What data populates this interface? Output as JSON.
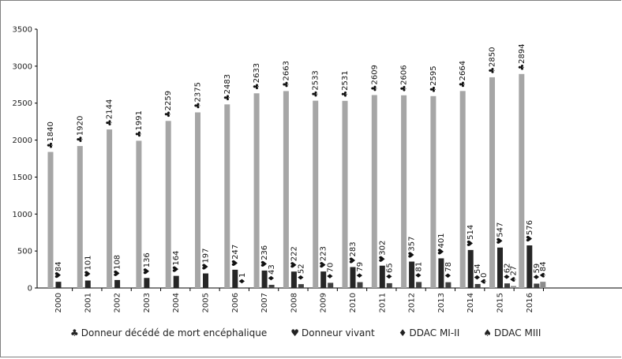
{
  "chart_data": {
    "type": "bar",
    "categories": [
      "2000",
      "2001",
      "2002",
      "2003",
      "2004",
      "2005",
      "2006",
      "2007",
      "2008",
      "2009",
      "2010",
      "2011",
      "2012",
      "2013",
      "2014",
      "2015",
      "2016"
    ],
    "ylim": [
      0,
      3500
    ],
    "yticks": [
      "0",
      "500",
      "1000",
      "1500",
      "2000",
      "2500",
      "3000",
      "3500"
    ],
    "grid": false,
    "legend_position": "bottom",
    "series": [
      {
        "name": "Donneur décédé de mort encéphalique",
        "symbol": "♣",
        "color": "#a6a6a6",
        "values": [
          1840,
          1920,
          2144,
          1991,
          2259,
          2375,
          2483,
          2633,
          2663,
          2533,
          2531,
          2609,
          2606,
          2595,
          2664,
          2850,
          2894
        ],
        "labels": [
          "1840",
          "1920",
          "2144",
          "1991",
          "2259",
          "2375",
          "2483",
          "2633",
          "2663",
          "2533",
          "2531",
          "2609",
          "2606",
          "2595",
          "2664",
          "2850",
          "2894"
        ]
      },
      {
        "name": "Donneur vivant",
        "symbol": "♥",
        "color": "#262626",
        "values": [
          84,
          101,
          108,
          136,
          164,
          197,
          247,
          236,
          222,
          223,
          283,
          302,
          357,
          401,
          514,
          547,
          576
        ],
        "labels": [
          "84",
          "101",
          "108",
          "136",
          "164",
          "197",
          "247",
          "236",
          "222",
          "223",
          "283",
          "302",
          "357",
          "401",
          "514",
          "547",
          "576"
        ]
      },
      {
        "name": "DDAC MI-II",
        "symbol": "♦",
        "color": "#404040",
        "values": [
          null,
          null,
          null,
          null,
          null,
          null,
          1,
          43,
          52,
          70,
          79,
          65,
          81,
          78,
          54,
          62,
          59
        ],
        "labels": [
          "",
          "",
          "",
          "",
          "",
          "",
          "1",
          "43",
          "52",
          "70",
          "79",
          "65",
          "81",
          "78",
          "54",
          "62",
          "59"
        ]
      },
      {
        "name": "DDAC MIII",
        "symbol": "♠",
        "color": "#8c8c8c",
        "values": [
          null,
          null,
          null,
          null,
          null,
          null,
          null,
          null,
          null,
          null,
          null,
          null,
          null,
          null,
          0,
          27,
          84
        ],
        "labels": [
          "",
          "",
          "",
          "",
          "",
          "",
          "",
          "",
          "",
          "",
          "",
          "",
          "",
          "",
          "0",
          "27",
          "84"
        ]
      }
    ]
  }
}
